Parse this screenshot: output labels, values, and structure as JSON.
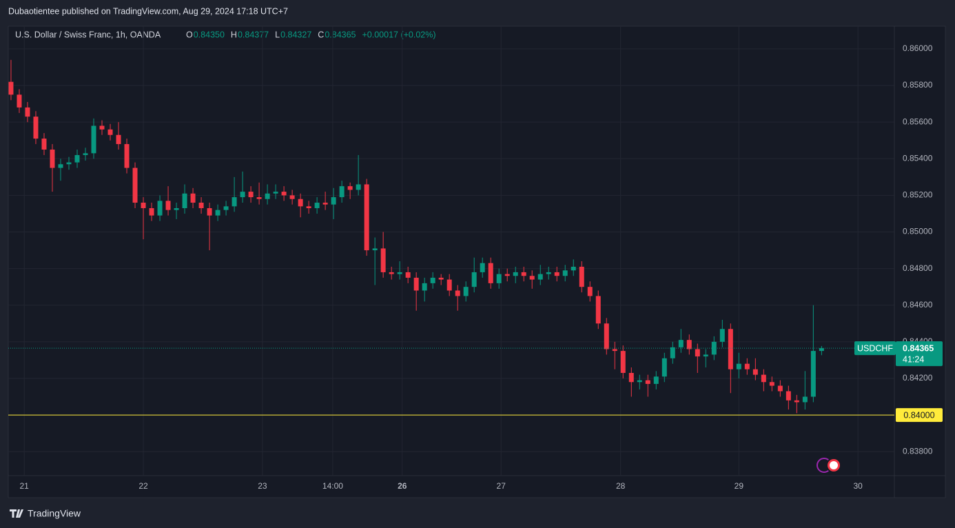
{
  "published": "Dubaotientee published on TradingView.com, Aug 29, 2024 17:18 UTC+7",
  "brand": "TradingView",
  "chart_data": {
    "type": "candlestick",
    "title": "U.S. Dollar / Swiss Franc, 1h, OANDA",
    "ohlc_legend": [
      {
        "label": "O",
        "value": "0.84350"
      },
      {
        "label": "H",
        "value": "0.84377"
      },
      {
        "label": "L",
        "value": "0.84327"
      },
      {
        "label": "C",
        "value": "0.84365"
      }
    ],
    "change": "+0.00017 (+0.02%)",
    "up_color": "#089981",
    "down_color": "#f23645",
    "open": [
      0.8582,
      0.8575,
      0.8568,
      0.8563,
      0.8551,
      0.8545,
      0.8535,
      0.8537,
      0.8538,
      0.8542,
      0.8543,
      0.8558,
      0.8556,
      0.8553,
      0.8548,
      0.8535,
      0.8516,
      0.8513,
      0.8509,
      0.8517,
      0.8512,
      0.8513,
      0.8521,
      0.8516,
      0.8513,
      0.8509,
      0.8512,
      0.8514,
      0.8519,
      0.8522,
      0.8519,
      0.8518,
      0.8521,
      0.8522,
      0.852,
      0.8518,
      0.8514,
      0.8513,
      0.8516,
      0.8515,
      0.8519,
      0.8525,
      0.8523,
      0.8526,
      0.849,
      0.8491,
      0.8478,
      0.8477,
      0.8478,
      0.8475,
      0.8468,
      0.8472,
      0.8475,
      0.8474,
      0.8468,
      0.8465,
      0.847,
      0.8478,
      0.8483,
      0.8472,
      0.8477,
      0.8476,
      0.8478,
      0.8476,
      0.8474,
      0.8477,
      0.8478,
      0.8476,
      0.8479,
      0.8481,
      0.847,
      0.8465,
      0.845,
      0.8436,
      0.8435,
      0.8423,
      0.8418,
      0.8419,
      0.8417,
      0.8421,
      0.8431,
      0.8437,
      0.8441,
      0.8436,
      0.8432,
      0.8433,
      0.844,
      0.8447,
      0.8425,
      0.8428,
      0.8425,
      0.8422,
      0.8418,
      0.8416,
      0.8413,
      0.8408,
      0.8407,
      0.841,
      0.8435
    ],
    "high": [
      0.8594,
      0.8578,
      0.8571,
      0.8566,
      0.8554,
      0.8548,
      0.854,
      0.8541,
      0.8545,
      0.8546,
      0.8562,
      0.8561,
      0.8559,
      0.856,
      0.8551,
      0.8538,
      0.8519,
      0.8516,
      0.852,
      0.8525,
      0.8516,
      0.8526,
      0.8524,
      0.8519,
      0.8516,
      0.8515,
      0.8517,
      0.853,
      0.8533,
      0.8525,
      0.8527,
      0.8526,
      0.8526,
      0.8525,
      0.8523,
      0.8521,
      0.8517,
      0.8519,
      0.8522,
      0.8524,
      0.8528,
      0.8527,
      0.8542,
      0.8529,
      0.8497,
      0.85,
      0.8481,
      0.8484,
      0.8481,
      0.8478,
      0.8475,
      0.8478,
      0.8477,
      0.8477,
      0.8471,
      0.8473,
      0.8486,
      0.8486,
      0.8486,
      0.848,
      0.848,
      0.8481,
      0.8481,
      0.8479,
      0.8482,
      0.8481,
      0.8481,
      0.8482,
      0.8485,
      0.8484,
      0.8473,
      0.8468,
      0.8453,
      0.844,
      0.8438,
      0.8426,
      0.8422,
      0.8422,
      0.8424,
      0.8434,
      0.844,
      0.8447,
      0.8444,
      0.8439,
      0.8436,
      0.8443,
      0.8452,
      0.845,
      0.8434,
      0.8431,
      0.8431,
      0.8425,
      0.8421,
      0.8419,
      0.8416,
      0.8411,
      0.8424,
      0.846,
      0.84377
    ],
    "low": [
      0.8572,
      0.8565,
      0.856,
      0.8548,
      0.8542,
      0.8522,
      0.8528,
      0.8534,
      0.8535,
      0.8539,
      0.854,
      0.8553,
      0.855,
      0.8545,
      0.8532,
      0.8513,
      0.8496,
      0.8506,
      0.8506,
      0.8509,
      0.8507,
      0.851,
      0.8513,
      0.851,
      0.849,
      0.8506,
      0.8509,
      0.8511,
      0.8516,
      0.8516,
      0.8515,
      0.8515,
      0.8518,
      0.8517,
      0.8515,
      0.8508,
      0.851,
      0.851,
      0.8512,
      0.8507,
      0.8516,
      0.8518,
      0.852,
      0.8487,
      0.8471,
      0.8475,
      0.8474,
      0.8474,
      0.8472,
      0.8457,
      0.8462,
      0.8469,
      0.8471,
      0.8465,
      0.8457,
      0.8462,
      0.8467,
      0.8475,
      0.8469,
      0.8469,
      0.8473,
      0.8472,
      0.8473,
      0.8469,
      0.8471,
      0.8474,
      0.8473,
      0.8473,
      0.8476,
      0.8467,
      0.8462,
      0.8447,
      0.8433,
      0.8425,
      0.842,
      0.841,
      0.8414,
      0.841,
      0.8414,
      0.8418,
      0.8428,
      0.8434,
      0.8433,
      0.8423,
      0.8426,
      0.843,
      0.8437,
      0.8412,
      0.842,
      0.8422,
      0.8419,
      0.8413,
      0.8413,
      0.841,
      0.8403,
      0.8401,
      0.8403,
      0.8407,
      0.84327
    ],
    "close": [
      0.8575,
      0.8568,
      0.8563,
      0.8551,
      0.8545,
      0.8535,
      0.8537,
      0.8538,
      0.8542,
      0.8543,
      0.8558,
      0.8556,
      0.8553,
      0.8548,
      0.8535,
      0.8516,
      0.8513,
      0.8509,
      0.8517,
      0.8512,
      0.8513,
      0.8521,
      0.8516,
      0.8513,
      0.8509,
      0.8512,
      0.8514,
      0.8519,
      0.8522,
      0.8519,
      0.8518,
      0.8521,
      0.8522,
      0.852,
      0.8518,
      0.8514,
      0.8513,
      0.8516,
      0.8515,
      0.8519,
      0.8525,
      0.8523,
      0.8526,
      0.849,
      0.8491,
      0.8478,
      0.8477,
      0.8478,
      0.8475,
      0.8468,
      0.8472,
      0.8475,
      0.8474,
      0.8468,
      0.8465,
      0.847,
      0.8478,
      0.8483,
      0.8472,
      0.8477,
      0.8476,
      0.8478,
      0.8476,
      0.8474,
      0.8477,
      0.8478,
      0.8476,
      0.8479,
      0.8481,
      0.847,
      0.8465,
      0.845,
      0.8436,
      0.8435,
      0.8423,
      0.8418,
      0.8419,
      0.8417,
      0.8421,
      0.8431,
      0.8437,
      0.8441,
      0.8436,
      0.8432,
      0.8433,
      0.844,
      0.8447,
      0.8425,
      0.8428,
      0.8425,
      0.8422,
      0.8418,
      0.8416,
      0.8413,
      0.8408,
      0.8407,
      0.841,
      0.8435,
      0.84365
    ],
    "xlim": [
      -0.33,
      106.8
    ],
    "xticks": [
      {
        "value": 1.6,
        "label": "21"
      },
      {
        "value": 16,
        "label": "22"
      },
      {
        "value": 30.4,
        "label": "23"
      },
      {
        "value": 38.9,
        "label": "14:00"
      },
      {
        "value": 47.3,
        "label": "26"
      },
      {
        "value": 59.25,
        "label": "27"
      },
      {
        "value": 73.7,
        "label": "28"
      },
      {
        "value": 88,
        "label": "29"
      },
      {
        "value": 102.4,
        "label": "30"
      }
    ],
    "ylim": [
      0.83669,
      0.86124
    ],
    "yticks": [
      {
        "value": 0.838,
        "label": "0.83800"
      },
      {
        "value": 0.84,
        "label": "0.84000"
      },
      {
        "value": 0.842,
        "label": "0.84200"
      },
      {
        "value": 0.844,
        "label": "0.84400"
      },
      {
        "value": 0.846,
        "label": "0.84600"
      },
      {
        "value": 0.848,
        "label": "0.84800"
      },
      {
        "value": 0.85,
        "label": "0.85000"
      },
      {
        "value": 0.852,
        "label": "0.85200"
      },
      {
        "value": 0.854,
        "label": "0.85400"
      },
      {
        "value": 0.856,
        "label": "0.85600"
      },
      {
        "value": 0.858,
        "label": "0.85800"
      },
      {
        "value": 0.86,
        "label": "0.86000"
      }
    ],
    "grid": true,
    "symbol_tag": "USDCHF",
    "last_price_label": "0.84365",
    "countdown": "41:24",
    "hline": {
      "value": 0.84,
      "label": "0.84000",
      "color": "#ffeb3b"
    }
  }
}
